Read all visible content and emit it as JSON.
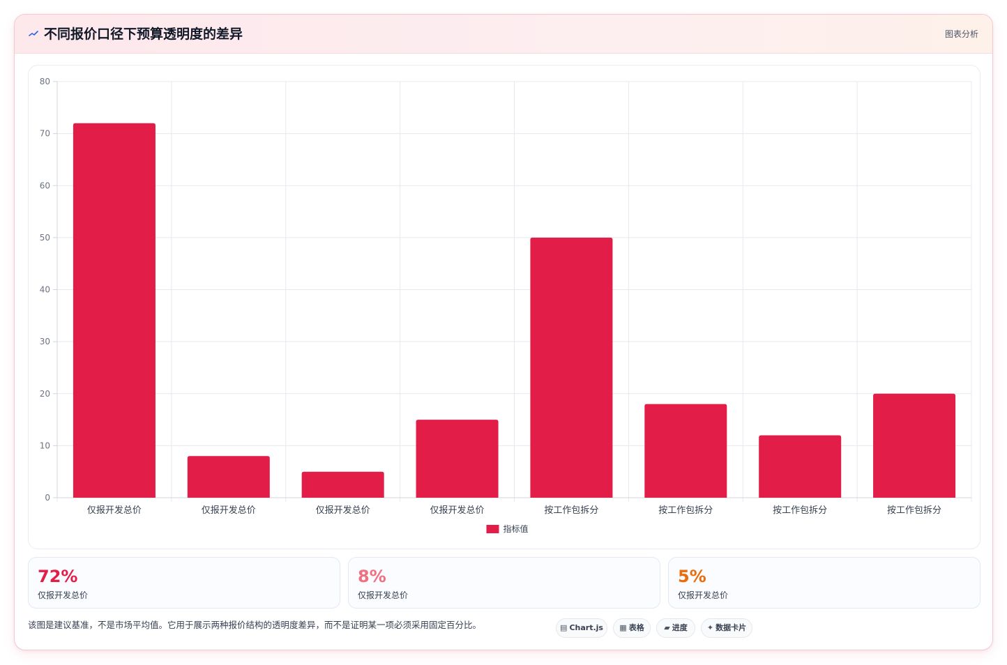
{
  "header": {
    "icon": "trend-icon",
    "title": "不同报价口径下预算透明度的差异",
    "tag": "图表分析"
  },
  "chart_data": {
    "type": "bar",
    "categories": [
      "仅报开发总价",
      "仅报开发总价",
      "仅报开发总价",
      "仅报开发总价",
      "按工作包拆分",
      "按工作包拆分",
      "按工作包拆分",
      "按工作包拆分"
    ],
    "series": [
      {
        "name": "指标值",
        "values": [
          72,
          8,
          5,
          15,
          50,
          18,
          12,
          20
        ],
        "color": "#e11d48"
      }
    ],
    "ylim": [
      0,
      80
    ],
    "yticks": [
      0,
      10,
      20,
      30,
      40,
      50,
      60,
      70,
      80
    ],
    "grid": true,
    "legend": "bottom"
  },
  "stats": [
    {
      "value": "72%",
      "label": "仅报开发总价",
      "color": "#e11d48"
    },
    {
      "value": "8%",
      "label": "仅报开发总价",
      "color": "#f0707f"
    },
    {
      "value": "5%",
      "label": "仅报开发总价",
      "color": "#ea6c0a"
    }
  ],
  "note": "该图是建议基准，不是市场平均值。它用于展示两种报价结构的透明度差异，而不是证明某一项必须采用固定百分比。",
  "chips": [
    {
      "icon": "chart-icon",
      "glyph": "▤",
      "label": "Chart.js"
    },
    {
      "icon": "table-icon",
      "glyph": "▦",
      "label": "表格"
    },
    {
      "icon": "progress-icon",
      "glyph": "▰",
      "label": "进度"
    },
    {
      "icon": "sparkle-icon",
      "glyph": "✦",
      "label": "数据卡片"
    }
  ]
}
